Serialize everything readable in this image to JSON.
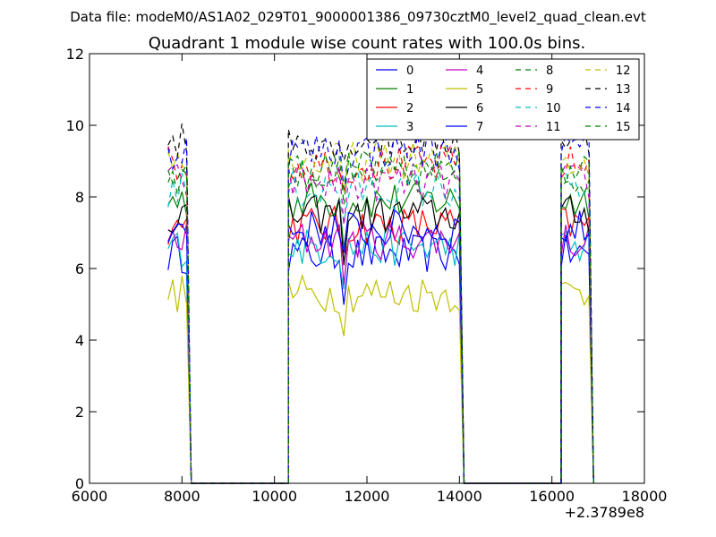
{
  "suptitle": "Data file: modeM0/AS1A02_029T01_9000001386_09730cztM0_level2_quad_clean.evt",
  "chart_data": {
    "type": "line",
    "title": "Quadrant 1 module wise count rates with 100.0s bins.",
    "xlabel": "",
    "ylabel": "",
    "xlim": [
      6000,
      18000
    ],
    "ylim": [
      0,
      12
    ],
    "x_ticks": [
      6000,
      8000,
      10000,
      12000,
      14000,
      16000,
      18000
    ],
    "y_ticks": [
      0,
      2,
      4,
      6,
      8,
      10,
      12
    ],
    "x_offset_label": "+2.3789e8",
    "grid": false,
    "legend": {
      "placement": "top-right",
      "columns": 4
    },
    "series_colors": [
      "#0000ff",
      "#008000",
      "#ff0000",
      "#00bfbf",
      "#bf00bf",
      "#bfbf00",
      "#000000",
      "#0000ff",
      "#008000",
      "#ff0000",
      "#00bfbf",
      "#bf00bf",
      "#bfbf00",
      "#000000",
      "#0000ff",
      "#008000"
    ],
    "series_styles": [
      "solid",
      "solid",
      "solid",
      "solid",
      "solid",
      "solid",
      "solid",
      "solid",
      "dashed",
      "dashed",
      "dashed",
      "dashed",
      "dashed",
      "dashed",
      "dashed",
      "dashed"
    ],
    "segments": [
      {
        "x_start": 7700,
        "x_end": 8200,
        "rate_scale": 1.0
      },
      {
        "x_start": 10300,
        "x_end": 14100,
        "rate_scale": 1.0
      },
      {
        "x_start": 16200,
        "x_end": 16900,
        "rate_scale": 1.0
      }
    ],
    "series": [
      {
        "name": "0",
        "level": 6.4
      },
      {
        "name": "1",
        "level": 7.9
      },
      {
        "name": "2",
        "level": 7.2
      },
      {
        "name": "3",
        "level": 6.6
      },
      {
        "name": "4",
        "level": 6.8
      },
      {
        "name": "5",
        "level": 5.3
      },
      {
        "name": "6",
        "level": 7.5
      },
      {
        "name": "7",
        "level": 7.1
      },
      {
        "name": "8",
        "level": 8.6
      },
      {
        "name": "9",
        "level": 8.9
      },
      {
        "name": "10",
        "level": 8.2
      },
      {
        "name": "11",
        "level": 8.4
      },
      {
        "name": "12",
        "level": 9.0
      },
      {
        "name": "13",
        "level": 9.6
      },
      {
        "name": "14",
        "level": 9.3
      },
      {
        "name": "15",
        "level": 8.8
      }
    ]
  }
}
